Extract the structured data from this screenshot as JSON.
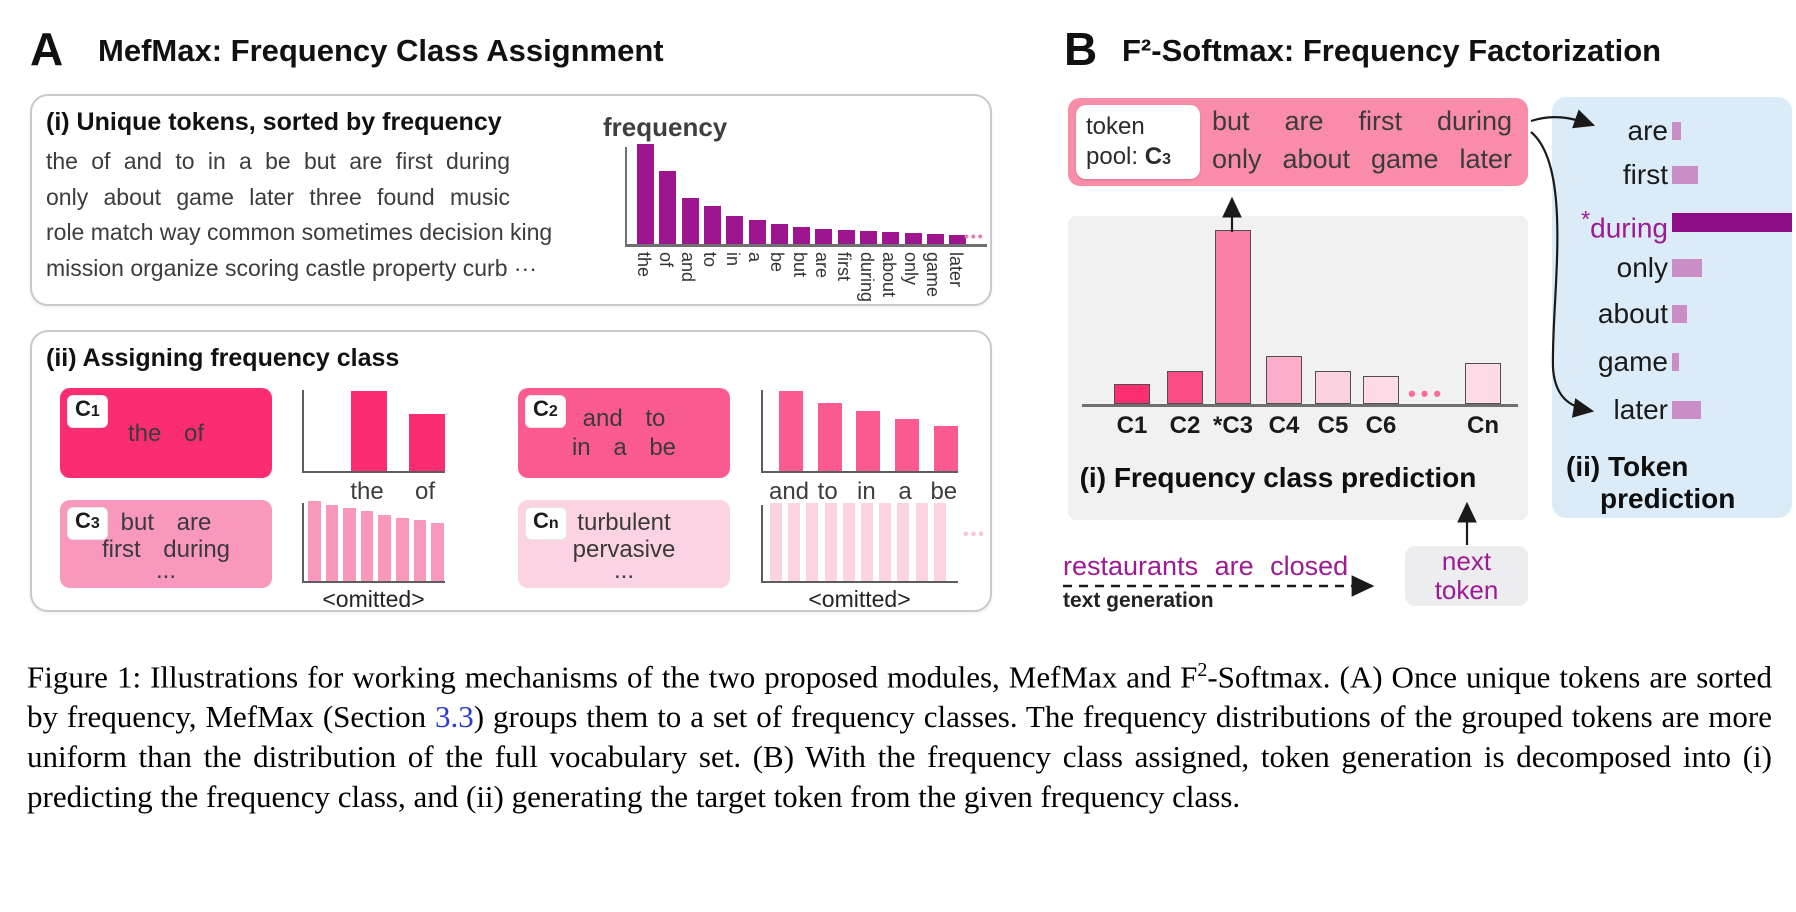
{
  "figure": {
    "panel_a": {
      "label": "A",
      "title": "MefMax: Frequency Class Assignment",
      "section_i": {
        "heading": "(i) Unique tokens, sorted by frequency",
        "token_lines": [
          "the of and to in a be but are first during",
          "only about game later three found music",
          "role match way common sometimes decision king",
          "mission organize scoring castle property curb ···"
        ]
      },
      "section_ii": {
        "heading": "(ii) Assigning frequency class",
        "classes": [
          {
            "badge_main": "C",
            "badge_sub": "1",
            "lines": [
              "the of"
            ]
          },
          {
            "badge_main": "C",
            "badge_sub": "2",
            "lines": [
              "and to",
              "in a be"
            ]
          },
          {
            "badge_main": "C",
            "badge_sub": "3",
            "lines": [
              "but are",
              "first during",
              "..."
            ]
          },
          {
            "badge_main": "C",
            "badge_sub": "n",
            "lines": [
              "turbulent",
              "pervasive",
              "..."
            ]
          }
        ]
      }
    },
    "panel_b": {
      "label": "B",
      "title": "F²-Softmax: Frequency Factorization",
      "token_pool": {
        "tag_top": "token",
        "tag_prefix": "pool: ",
        "tag_class_main": "C",
        "tag_class_sub": "3",
        "words": [
          "but are first during",
          "only about game later"
        ]
      },
      "subfig_i_caption": "(i) Frequency class prediction",
      "subfig_ii_caption_line1": "(ii) Token",
      "subfig_ii_caption_line2": "prediction",
      "context_text": "restaurants are closed",
      "generation_label": "text generation",
      "next_token": [
        "next",
        "token"
      ]
    },
    "caption": {
      "segments": [
        {
          "text": "Figure 1: Illustrations for working mechanisms of the two proposed modules, MefMax and F",
          "style": "normal"
        },
        {
          "text": "2",
          "style": "sup"
        },
        {
          "text": "-Softmax. (A) Once unique tokens are sorted by frequency, MefMax (Section ",
          "style": "normal"
        },
        {
          "text": "3.3",
          "style": "link"
        },
        {
          "text": ") groups them to a set of frequency classes. The frequency distributions of the grouped tokens are more uniform than the distribution of the full vocabulary set. (B) With the frequency class assigned, token generation is decomposed into (i) predicting the frequency class, and (ii) generating the target token from the given frequency class.",
          "style": "normal"
        }
      ]
    }
  },
  "colors": {
    "vocab_bar": "#9e168f",
    "class_c1": "#fa2d72",
    "class_c2": "#fb5b90",
    "class_c3": "#f998bd",
    "class_cn": "#fcd3e2",
    "token_pool_bg": "#f98ca9",
    "gray_panel": "#f1f1f2",
    "blue_panel": "#dcebf8",
    "purple_text": "#9c1b94",
    "token_bar": "#cb8dc6",
    "token_bar_highlight": "#8e0d86",
    "link_blue": "#2b3ad0"
  },
  "chart_data": [
    {
      "id": "vocab_frequency",
      "type": "bar",
      "title": "frequency",
      "categories": [
        "the",
        "of",
        "and",
        "to",
        "in",
        "a",
        "be",
        "but",
        "are",
        "first",
        "during",
        "about",
        "only",
        "game",
        "later"
      ],
      "values": [
        100,
        73,
        46,
        38,
        28,
        24,
        20,
        17,
        15,
        14,
        13,
        12,
        11,
        10,
        9
      ],
      "ylabel": "frequency",
      "bar_color": "#9e168f",
      "trailing_ellipsis": "•••",
      "note": "long-tail token frequency distribution, heights in relative units"
    },
    {
      "id": "class_c1",
      "type": "bar",
      "categories": [
        "the",
        "of"
      ],
      "values": [
        80,
        57
      ],
      "bar_color": "#fa2d72"
    },
    {
      "id": "class_c2",
      "type": "bar",
      "categories": [
        "and",
        "to",
        "in",
        "a",
        "be"
      ],
      "values": [
        80,
        68,
        60,
        52,
        45
      ],
      "bar_color": "#fb5b90"
    },
    {
      "id": "class_c3",
      "type": "bar",
      "xlabel": "<omitted>",
      "values": [
        80,
        76,
        73,
        70,
        66,
        63,
        61,
        58
      ],
      "bar_color": "#f998bd"
    },
    {
      "id": "class_cn",
      "type": "bar",
      "xlabel": "<omitted>",
      "values": [
        78,
        78,
        78,
        78,
        78,
        78,
        78,
        78,
        78,
        78
      ],
      "bar_color": "#fcd3e2",
      "trailing_ellipsis": "•••"
    },
    {
      "id": "class_prediction",
      "type": "bar",
      "categories": [
        "C1",
        "C2",
        "*C3",
        "C4",
        "C5",
        "C6",
        "Cn"
      ],
      "values": [
        20,
        33,
        174,
        48,
        33,
        28,
        41
      ],
      "bar_colors": [
        "#fb2e70",
        "#fb4d85",
        "#fa80a8",
        "#fbadc9",
        "#fcd2e0",
        "#fddbe7",
        "#fddbe7"
      ],
      "gap_ellipsis": "•••",
      "highlight": "*C3"
    },
    {
      "id": "token_prediction",
      "type": "bar",
      "orientation": "horizontal",
      "categories": [
        "are",
        "first",
        "during",
        "only",
        "about",
        "game",
        "later"
      ],
      "values": [
        9,
        26,
        120,
        30,
        15,
        7,
        29
      ],
      "highlight_index": 2,
      "highlight_prefix": "*",
      "bar_color": "#cb8dc6",
      "highlight_bar_color": "#8e0d86"
    }
  ]
}
